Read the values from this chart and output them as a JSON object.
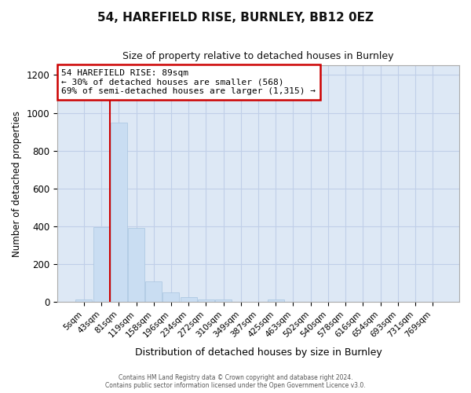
{
  "title_line1": "54, HAREFIELD RISE, BURNLEY, BB12 0EZ",
  "title_line2": "Size of property relative to detached houses in Burnley",
  "xlabel": "Distribution of detached houses by size in Burnley",
  "ylabel": "Number of detached properties",
  "categories": [
    "5sqm",
    "43sqm",
    "81sqm",
    "119sqm",
    "158sqm",
    "196sqm",
    "234sqm",
    "272sqm",
    "310sqm",
    "349sqm",
    "387sqm",
    "425sqm",
    "463sqm",
    "502sqm",
    "540sqm",
    "578sqm",
    "616sqm",
    "654sqm",
    "693sqm",
    "731sqm",
    "769sqm"
  ],
  "values": [
    13,
    395,
    950,
    390,
    108,
    50,
    25,
    15,
    13,
    0,
    0,
    12,
    0,
    0,
    0,
    0,
    0,
    0,
    0,
    0,
    0
  ],
  "bar_color": "#c9ddf2",
  "bar_edge_color": "#a8c4e0",
  "grid_color": "#c0cfe8",
  "plot_bg_color": "#dde8f5",
  "fig_bg_color": "#ffffff",
  "red_line_x": 1.5,
  "annotation_line1": "54 HAREFIELD RISE: 89sqm",
  "annotation_line2": "← 30% of detached houses are smaller (568)",
  "annotation_line3": "69% of semi-detached houses are larger (1,315) →",
  "annotation_box_facecolor": "#ffffff",
  "annotation_box_edgecolor": "#cc0000",
  "ylim": [
    0,
    1250
  ],
  "yticks": [
    0,
    200,
    400,
    600,
    800,
    1000,
    1200
  ],
  "footnote1": "Contains HM Land Registry data © Crown copyright and database right 2024.",
  "footnote2": "Contains public sector information licensed under the Open Government Licence v3.0."
}
